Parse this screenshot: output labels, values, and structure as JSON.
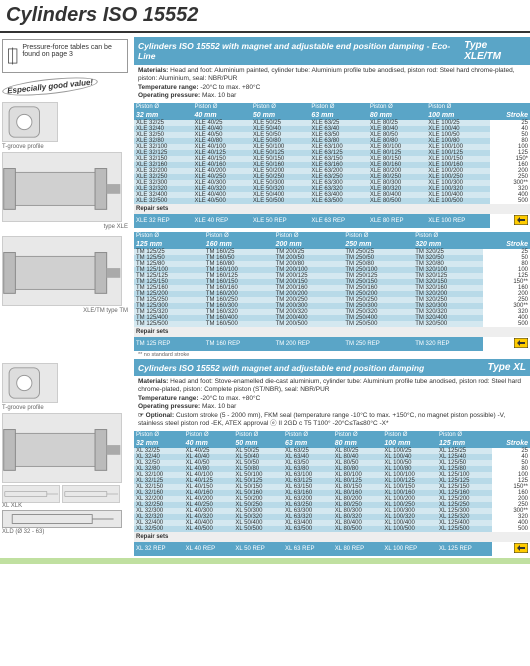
{
  "page_title": "Cylinders ISO 15552",
  "page_note": "Pressure-force tables can be found on page 3",
  "sections": [
    {
      "hdr_title": "Cylinders ISO 15552 with magnet and adjustable end position damping - Eco-Line",
      "hdr_type": "Type XLE/TM",
      "specs": {
        "materials_lbl": "Materials:",
        "materials": "Head and foot: Aluminium painted, cylinder tube: Aluminium profile tube anodised, piston rod: Steel hard chrome-plated, piston: Aluminium, seal: NBR/PUR",
        "temp_lbl": "Temperature range:",
        "temp": "-20°C to max. +80°C",
        "press_lbl": "Operating pressure:",
        "press": "Max. 10 bar"
      },
      "col_header": "Piston Ø",
      "stroke_header": "Stroke",
      "diameters": [
        "32 mm",
        "40 mm",
        "50 mm",
        "63 mm",
        "80 mm",
        "100 mm"
      ],
      "strokes": [
        "25",
        "40",
        "50",
        "80",
        "100",
        "125",
        "150*",
        "160",
        "200",
        "250",
        "300**",
        "320",
        "400",
        "500"
      ],
      "prefix": "XLE",
      "repair_label": "Repair sets",
      "repair_prefix": "XLE",
      "repair_suffix": "REP",
      "footnote": "",
      "callout": "Especially good value!",
      "left_images": [
        {
          "cap": "T-groove profile",
          "kind": "small"
        },
        {
          "cap": "type XLE",
          "kind": "large"
        }
      ]
    },
    {
      "hdr_title": "",
      "hdr_type": "",
      "col_header": "Piston Ø",
      "stroke_header": "Stroke",
      "diameters": [
        "125 mm",
        "160 mm",
        "200 mm",
        "250 mm",
        "320 mm"
      ],
      "strokes": [
        "25",
        "50",
        "80",
        "100",
        "125",
        "150**",
        "160",
        "200",
        "250",
        "300**",
        "320",
        "400",
        "500"
      ],
      "prefix": "TM",
      "repair_label": "Repair sets",
      "repair_prefix": "TM",
      "repair_suffix": "REP",
      "footnote": "** no standard stroke",
      "left_images": [
        {
          "cap": "XLE/TM          type TM",
          "kind": "large"
        }
      ]
    },
    {
      "hdr_title": "Cylinders ISO 15552 with magnet and adjustable end position damping",
      "hdr_type": "Type XL",
      "specs": {
        "materials_lbl": "Materials:",
        "materials": "Head and foot: Stove-enamelled die-cast aluminium, cylinder tube: Aluminium profile tube anodised, piston rod: Steel hard chrome-plated, piston: Complete piston (ST/NBR), seal: NBR/PUR",
        "temp_lbl": "Temperature range:",
        "temp": "-20°C to max. +80°C",
        "press_lbl": "Operating pressure:",
        "press": "Max. 10 bar",
        "optional_lbl": "☞ Optional:",
        "optional": "Custom stroke (5 - 2000 mm), FKM seal (temperature range -10°C to max. +150°C, no magnet piston possible) -V, stainless steel piston rod -EK, ATEX approval ⓔ II 2GD c T5 T100° -20°C≤Ta≤80°C -X*"
      },
      "col_header": "Piston Ø",
      "stroke_header": "Stroke",
      "diameters": [
        "32 mm",
        "40 mm",
        "50 mm",
        "63 mm",
        "80 mm",
        "100 mm",
        "125 mm"
      ],
      "strokes": [
        "25",
        "40",
        "50",
        "80",
        "100",
        "125",
        "150**",
        "160",
        "200",
        "250",
        "300**",
        "320",
        "400",
        "500"
      ],
      "prefix": "XL",
      "repair_label": "Repair sets",
      "repair_prefix": "XL",
      "repair_suffix": "REP",
      "footnote": "",
      "left_images": [
        {
          "cap": "T-groove profile",
          "kind": "small"
        },
        {
          "cap": "",
          "kind": "large"
        },
        {
          "cap": "XL      XLK",
          "kind": "wires"
        },
        {
          "cap": "XLD (Ø 32 - 63)",
          "kind": "wire"
        }
      ]
    }
  ],
  "colors": {
    "header_bg": "#5aa5c7",
    "band_a": "#d4e8f0",
    "band_b": "#b8dae8"
  }
}
